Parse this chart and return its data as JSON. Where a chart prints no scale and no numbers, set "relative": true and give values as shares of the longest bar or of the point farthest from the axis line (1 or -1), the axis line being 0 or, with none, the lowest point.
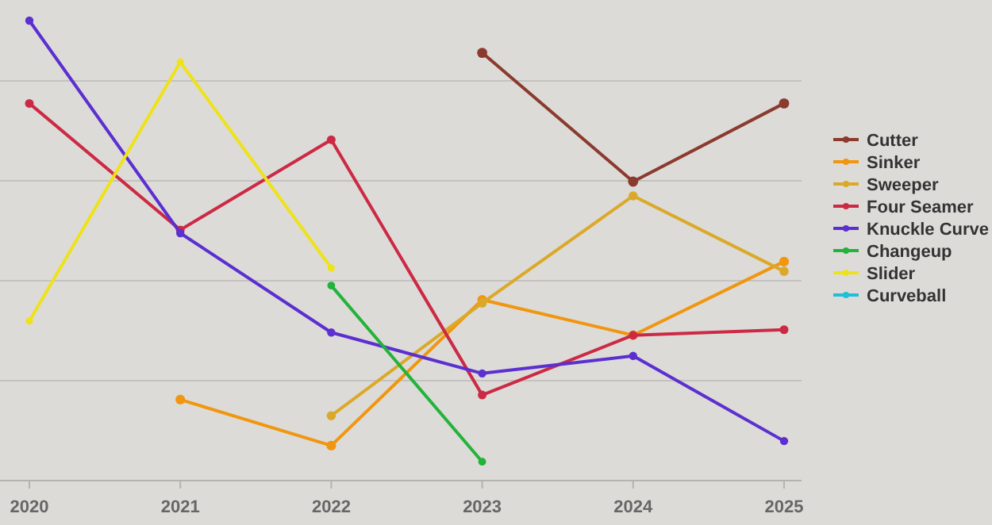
{
  "chart_data": {
    "type": "line",
    "relative": true,
    "categories": [
      "2020",
      "2021",
      "2022",
      "2023",
      "2024",
      "2025"
    ],
    "grid": "y",
    "legend": "right",
    "marker": "circle",
    "line_style": "solid",
    "series": [
      {
        "name": "Cutter",
        "color": "#8b3a2e",
        "values": [
          null,
          null,
          null,
          0.93,
          0.65,
          0.82
        ]
      },
      {
        "name": "Sinker",
        "color": "#f0960f",
        "values": [
          null,
          0.176,
          0.076,
          0.393,
          0.316,
          0.476
        ]
      },
      {
        "name": "Sweeper",
        "color": "#dba92a",
        "values": [
          null,
          null,
          0.141,
          0.386,
          0.619,
          0.455
        ]
      },
      {
        "name": "Four Seamer",
        "color": "#cc2a44",
        "values": [
          0.82,
          0.545,
          0.741,
          0.186,
          0.316,
          0.328
        ]
      },
      {
        "name": "Knuckle Curve",
        "color": "#5b2fd0",
        "values": [
          1,
          0.538,
          0.322,
          0.233,
          0.271,
          0.086
        ]
      },
      {
        "name": "Changeup",
        "color": "#22b33a",
        "values": [
          null,
          null,
          0.424,
          0.041,
          null,
          null
        ]
      },
      {
        "name": "Slider",
        "color": "#eee21a",
        "values": [
          0.347,
          0.91,
          0.462,
          null,
          null,
          null
        ]
      },
      {
        "name": "Curveball",
        "color": "#1ec0d8",
        "values": [
          null,
          null,
          null,
          null,
          null,
          null
        ]
      }
    ]
  }
}
